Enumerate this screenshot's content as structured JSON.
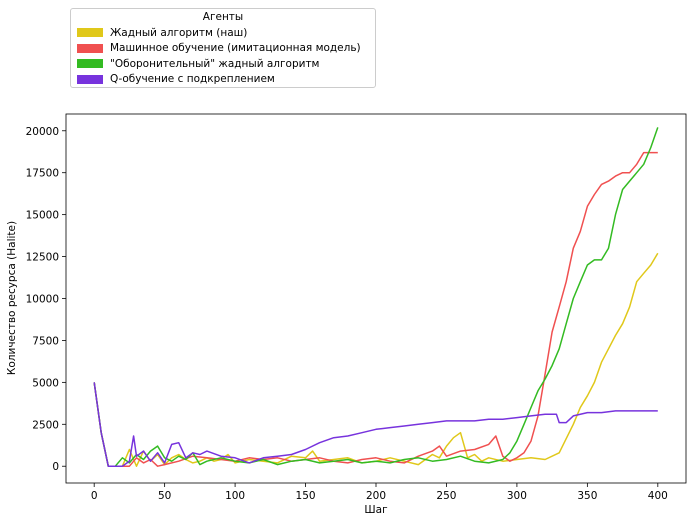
{
  "chart_data": {
    "type": "line",
    "title": "",
    "xlabel": "Шаг",
    "ylabel": "Количество ресурса (Halite)",
    "xlim": [
      -20,
      420
    ],
    "ylim": [
      -1000,
      21000
    ],
    "xticks": [
      0,
      50,
      100,
      150,
      200,
      250,
      300,
      350,
      400
    ],
    "yticks": [
      0,
      2500,
      5000,
      7500,
      10000,
      12500,
      15000,
      17500,
      20000
    ],
    "grid": false,
    "legend": {
      "title": "Агенты",
      "placement": "above plot, top-left"
    },
    "series": [
      {
        "name": "Жадный алгоритм (наш)",
        "color": "#e0c81a",
        "points": [
          [
            0,
            5000
          ],
          [
            5,
            2000
          ],
          [
            10,
            0
          ],
          [
            15,
            0
          ],
          [
            20,
            0
          ],
          [
            25,
            1000
          ],
          [
            30,
            0
          ],
          [
            35,
            900
          ],
          [
            40,
            300
          ],
          [
            45,
            700
          ],
          [
            50,
            100
          ],
          [
            55,
            500
          ],
          [
            60,
            700
          ],
          [
            65,
            400
          ],
          [
            70,
            200
          ],
          [
            75,
            300
          ],
          [
            80,
            500
          ],
          [
            85,
            300
          ],
          [
            90,
            400
          ],
          [
            95,
            700
          ],
          [
            100,
            200
          ],
          [
            110,
            400
          ],
          [
            120,
            300
          ],
          [
            130,
            200
          ],
          [
            140,
            600
          ],
          [
            150,
            500
          ],
          [
            155,
            900
          ],
          [
            160,
            300
          ],
          [
            170,
            400
          ],
          [
            180,
            500
          ],
          [
            190,
            200
          ],
          [
            200,
            300
          ],
          [
            210,
            500
          ],
          [
            220,
            300
          ],
          [
            230,
            100
          ],
          [
            240,
            700
          ],
          [
            245,
            500
          ],
          [
            250,
            1200
          ],
          [
            255,
            1700
          ],
          [
            260,
            2000
          ],
          [
            265,
            500
          ],
          [
            270,
            700
          ],
          [
            275,
            300
          ],
          [
            280,
            500
          ],
          [
            290,
            300
          ],
          [
            300,
            400
          ],
          [
            310,
            500
          ],
          [
            320,
            400
          ],
          [
            330,
            800
          ],
          [
            340,
            2500
          ],
          [
            345,
            3500
          ],
          [
            350,
            4200
          ],
          [
            355,
            5000
          ],
          [
            360,
            6200
          ],
          [
            365,
            7000
          ],
          [
            370,
            7800
          ],
          [
            375,
            8500
          ],
          [
            380,
            9500
          ],
          [
            385,
            11000
          ],
          [
            390,
            11500
          ],
          [
            395,
            12000
          ],
          [
            400,
            12700
          ]
        ]
      },
      {
        "name": "Машинное обучение (имитационная модель)",
        "color": "#f05050",
        "points": [
          [
            0,
            5000
          ],
          [
            5,
            2000
          ],
          [
            10,
            0
          ],
          [
            15,
            0
          ],
          [
            20,
            0
          ],
          [
            25,
            0
          ],
          [
            30,
            500
          ],
          [
            35,
            200
          ],
          [
            40,
            400
          ],
          [
            45,
            0
          ],
          [
            50,
            100
          ],
          [
            60,
            300
          ],
          [
            70,
            600
          ],
          [
            80,
            500
          ],
          [
            90,
            400
          ],
          [
            100,
            300
          ],
          [
            110,
            500
          ],
          [
            120,
            400
          ],
          [
            130,
            500
          ],
          [
            140,
            300
          ],
          [
            150,
            400
          ],
          [
            160,
            500
          ],
          [
            170,
            300
          ],
          [
            180,
            200
          ],
          [
            190,
            400
          ],
          [
            200,
            500
          ],
          [
            210,
            300
          ],
          [
            220,
            200
          ],
          [
            230,
            600
          ],
          [
            240,
            900
          ],
          [
            245,
            1200
          ],
          [
            250,
            600
          ],
          [
            260,
            900
          ],
          [
            270,
            1000
          ],
          [
            280,
            1300
          ],
          [
            285,
            1800
          ],
          [
            290,
            600
          ],
          [
            295,
            300
          ],
          [
            300,
            500
          ],
          [
            305,
            800
          ],
          [
            310,
            1500
          ],
          [
            315,
            3000
          ],
          [
            320,
            5500
          ],
          [
            325,
            8000
          ],
          [
            330,
            9500
          ],
          [
            335,
            11000
          ],
          [
            340,
            13000
          ],
          [
            345,
            14000
          ],
          [
            350,
            15500
          ],
          [
            355,
            16200
          ],
          [
            360,
            16800
          ],
          [
            365,
            17000
          ],
          [
            370,
            17300
          ],
          [
            375,
            17500
          ],
          [
            380,
            17500
          ],
          [
            385,
            18000
          ],
          [
            390,
            18700
          ],
          [
            395,
            18700
          ],
          [
            400,
            18700
          ]
        ]
      },
      {
        "name": "\"Оборонительный\" жадный алгоритм",
        "color": "#33bb22",
        "points": [
          [
            0,
            5000
          ],
          [
            5,
            2000
          ],
          [
            10,
            0
          ],
          [
            15,
            0
          ],
          [
            20,
            500
          ],
          [
            25,
            200
          ],
          [
            30,
            700
          ],
          [
            35,
            400
          ],
          [
            40,
            900
          ],
          [
            45,
            1200
          ],
          [
            50,
            500
          ],
          [
            55,
            300
          ],
          [
            60,
            600
          ],
          [
            65,
            400
          ],
          [
            70,
            800
          ],
          [
            75,
            100
          ],
          [
            80,
            300
          ],
          [
            90,
            500
          ],
          [
            100,
            300
          ],
          [
            110,
            200
          ],
          [
            120,
            400
          ],
          [
            130,
            100
          ],
          [
            140,
            300
          ],
          [
            150,
            400
          ],
          [
            160,
            200
          ],
          [
            170,
            300
          ],
          [
            180,
            400
          ],
          [
            190,
            200
          ],
          [
            200,
            300
          ],
          [
            210,
            200
          ],
          [
            220,
            400
          ],
          [
            230,
            500
          ],
          [
            240,
            300
          ],
          [
            250,
            400
          ],
          [
            260,
            600
          ],
          [
            270,
            300
          ],
          [
            280,
            200
          ],
          [
            290,
            400
          ],
          [
            295,
            800
          ],
          [
            300,
            1500
          ],
          [
            305,
            2500
          ],
          [
            310,
            3500
          ],
          [
            315,
            4500
          ],
          [
            320,
            5200
          ],
          [
            325,
            6000
          ],
          [
            330,
            7000
          ],
          [
            335,
            8500
          ],
          [
            340,
            10000
          ],
          [
            345,
            11000
          ],
          [
            350,
            12000
          ],
          [
            355,
            12300
          ],
          [
            360,
            12300
          ],
          [
            365,
            13000
          ],
          [
            370,
            15000
          ],
          [
            375,
            16500
          ],
          [
            380,
            17000
          ],
          [
            385,
            17500
          ],
          [
            390,
            18000
          ],
          [
            395,
            19000
          ],
          [
            400,
            20200
          ]
        ]
      },
      {
        "name": "Q-обучение с подкреплением",
        "color": "#7733dd",
        "points": [
          [
            0,
            5000
          ],
          [
            5,
            2000
          ],
          [
            10,
            0
          ],
          [
            15,
            0
          ],
          [
            20,
            0
          ],
          [
            25,
            300
          ],
          [
            28,
            1800
          ],
          [
            30,
            600
          ],
          [
            35,
            900
          ],
          [
            40,
            300
          ],
          [
            45,
            800
          ],
          [
            50,
            200
          ],
          [
            55,
            1300
          ],
          [
            60,
            1400
          ],
          [
            65,
            500
          ],
          [
            70,
            800
          ],
          [
            75,
            700
          ],
          [
            80,
            900
          ],
          [
            90,
            600
          ],
          [
            100,
            500
          ],
          [
            110,
            200
          ],
          [
            120,
            500
          ],
          [
            130,
            600
          ],
          [
            140,
            700
          ],
          [
            150,
            1000
          ],
          [
            160,
            1400
          ],
          [
            170,
            1700
          ],
          [
            180,
            1800
          ],
          [
            190,
            2000
          ],
          [
            200,
            2200
          ],
          [
            210,
            2300
          ],
          [
            220,
            2400
          ],
          [
            230,
            2500
          ],
          [
            240,
            2600
          ],
          [
            250,
            2700
          ],
          [
            260,
            2700
          ],
          [
            270,
            2700
          ],
          [
            280,
            2800
          ],
          [
            290,
            2800
          ],
          [
            300,
            2900
          ],
          [
            310,
            3000
          ],
          [
            320,
            3100
          ],
          [
            328,
            3100
          ],
          [
            330,
            2600
          ],
          [
            335,
            2600
          ],
          [
            340,
            3000
          ],
          [
            350,
            3200
          ],
          [
            360,
            3200
          ],
          [
            370,
            3300
          ],
          [
            380,
            3300
          ],
          [
            390,
            3300
          ],
          [
            400,
            3300
          ]
        ]
      }
    ]
  }
}
